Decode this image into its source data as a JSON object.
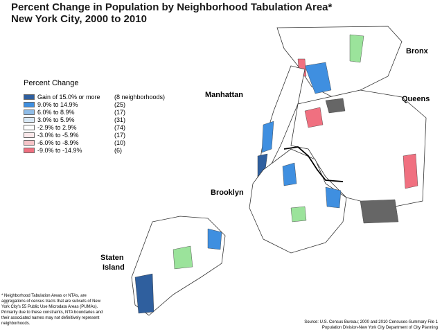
{
  "title": {
    "line1": "Percent Change in Population by Neighborhood Tabulation Area*",
    "line2": "New York City, 2000 to 2010"
  },
  "legend": {
    "title": "Percent Change",
    "items": [
      {
        "range": "Gain of 15.0% or more",
        "count": "(8 neighborhoods)",
        "color": "#2f5f9e"
      },
      {
        "range": "9.0% to 14.9%",
        "count": "(25)",
        "color": "#3f8fe0"
      },
      {
        "range": "6.0% to 8.9%",
        "count": "(17)",
        "color": "#8fbde8"
      },
      {
        "range": "3.0% to 5.9%",
        "count": "(31)",
        "color": "#d8e8f5"
      },
      {
        "range": "-2.9% to 2.9%",
        "count": "(74)",
        "color": "#ffffff"
      },
      {
        "range": "-3.0% to -5.9%",
        "count": "(17)",
        "color": "#fbe8ea"
      },
      {
        "range": "-6.0% to -8.9%",
        "count": "(10)",
        "color": "#f5c4c8"
      },
      {
        "range": "-9.0% to -14.9%",
        "count": "(6)",
        "color": "#f07080"
      }
    ]
  },
  "boroughs": {
    "bronx": "Bronx",
    "manhattan": "Manhattan",
    "queens": "Queens",
    "brooklyn": "Brooklyn",
    "staten_line1": "Staten",
    "staten_line2": "Island"
  },
  "footnote": "* Neighborhood Tabulation Areas or NTAs, are aggregations of census tracts that are subsets of New York City's 55 Public Use Microdata Areas (PUMAs). Primarily due to these constraints, NTA boundaries and their associated names may not definitively represent neighborhoods.",
  "source": {
    "line1": "Source: U.S. Census Bureau; 2000 and 2010 Censuses-Summary File 1",
    "line2": "Population Division-New York City Department of City Planning"
  },
  "colors": {
    "water": "#ffffff",
    "park": "#9be39b",
    "airport": "#666666",
    "outline": "#333333"
  }
}
